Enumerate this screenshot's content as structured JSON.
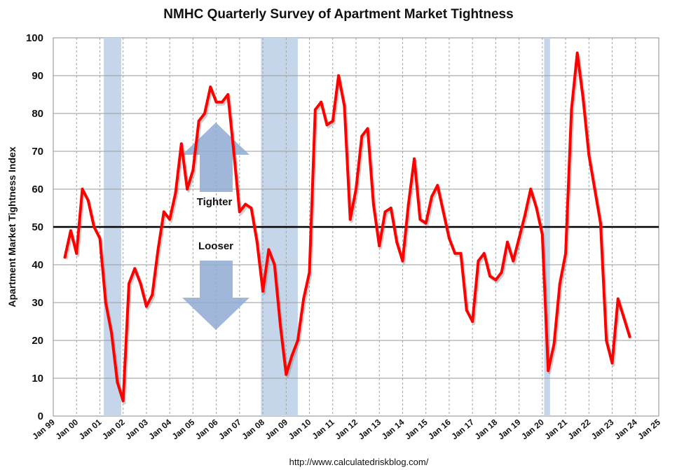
{
  "chart_data": {
    "type": "line",
    "title": "NMHC Quarterly Survey of Apartment Market Tightness",
    "ylabel": "Apartment Market Tightness Index",
    "xlabel": "",
    "ylim": [
      0,
      100
    ],
    "xlim": [
      1999.0,
      2025.0
    ],
    "yticks": [
      0,
      10,
      20,
      30,
      40,
      50,
      60,
      70,
      80,
      90,
      100
    ],
    "xtick_labels": [
      "Jan 99",
      "Jan 00",
      "Jan 01",
      "Jan 02",
      "Jan 03",
      "Jan 04",
      "Jan 05",
      "Jan 06",
      "Jan 07",
      "Jan 08",
      "Jan 09",
      "Jan 10",
      "Jan 11",
      "Jan 12",
      "Jan 13",
      "Jan 14",
      "Jan 15",
      "Jan 16",
      "Jan 17",
      "Jan 18",
      "Jan 19",
      "Jan 20",
      "Jan 21",
      "Jan 22",
      "Jan 23",
      "Jan 24",
      "Jan 25"
    ],
    "grid": true,
    "reference_line": 50,
    "recessions": [
      {
        "start": 2001.17,
        "end": 2001.92
      },
      {
        "start": 2007.92,
        "end": 2009.5
      },
      {
        "start": 2020.08,
        "end": 2020.33
      }
    ],
    "annotations": {
      "tighter": "Tighter",
      "looser": "Looser"
    },
    "source": "http://www.calculatedriskblog.com/",
    "series": [
      {
        "color": "#ff0000",
        "x": [
          1999.5,
          1999.75,
          2000.0,
          2000.25,
          2000.5,
          2000.75,
          2001.0,
          2001.25,
          2001.5,
          2001.75,
          2002.0,
          2002.25,
          2002.5,
          2002.75,
          2003.0,
          2003.25,
          2003.5,
          2003.75,
          2004.0,
          2004.25,
          2004.5,
          2004.75,
          2005.0,
          2005.25,
          2005.5,
          2005.75,
          2006.0,
          2006.25,
          2006.5,
          2006.75,
          2007.0,
          2007.25,
          2007.5,
          2007.75,
          2008.0,
          2008.25,
          2008.5,
          2008.75,
          2009.0,
          2009.25,
          2009.5,
          2009.75,
          2010.0,
          2010.25,
          2010.5,
          2010.75,
          2011.0,
          2011.25,
          2011.5,
          2011.75,
          2012.0,
          2012.25,
          2012.5,
          2012.75,
          2013.0,
          2013.25,
          2013.5,
          2013.75,
          2014.0,
          2014.25,
          2014.5,
          2014.75,
          2015.0,
          2015.25,
          2015.5,
          2015.75,
          2016.0,
          2016.25,
          2016.5,
          2016.75,
          2017.0,
          2017.25,
          2017.5,
          2017.75,
          2018.0,
          2018.25,
          2018.5,
          2018.75,
          2019.0,
          2019.25,
          2019.5,
          2019.75,
          2020.0,
          2020.25,
          2020.5,
          2020.75,
          2021.0,
          2021.25,
          2021.5,
          2021.75,
          2022.0,
          2022.25,
          2022.5,
          2022.75,
          2023.0,
          2023.25,
          2023.5,
          2023.75
        ],
        "values": [
          42,
          49,
          43,
          60,
          57,
          50,
          47,
          30,
          22,
          9,
          4,
          35,
          39,
          35,
          29,
          32,
          44,
          54,
          52,
          59,
          72,
          60,
          65,
          78,
          80,
          87,
          83,
          83,
          85,
          70,
          54,
          56,
          55,
          46,
          33,
          44,
          40,
          24,
          11,
          16,
          20,
          31,
          38,
          81,
          83,
          77,
          78,
          90,
          82,
          52,
          60,
          74,
          76,
          56,
          45,
          54,
          55,
          46,
          41,
          56,
          68,
          52,
          51,
          58,
          61,
          54,
          47,
          43,
          43,
          28,
          25,
          41,
          43,
          37,
          36,
          38,
          46,
          41,
          47,
          53,
          60,
          55,
          48,
          12,
          19,
          35,
          43,
          81,
          96,
          84,
          69,
          60,
          51,
          20,
          14,
          31,
          26,
          21
        ]
      }
    ]
  }
}
